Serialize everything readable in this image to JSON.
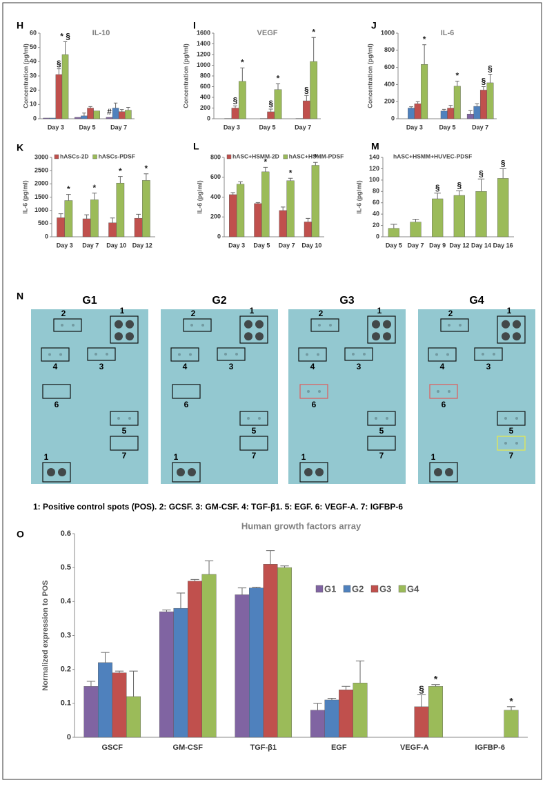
{
  "chart_data": [
    {
      "type": "bar",
      "panel": "H",
      "title": "IL-10",
      "y_label": "Concentration (pg/ml)",
      "categories": [
        "Day 3",
        "Day 5",
        "Day 7"
      ],
      "ylim": [
        0,
        60
      ],
      "yticks": [
        0,
        10,
        20,
        30,
        40,
        50,
        60
      ],
      "series": [
        {
          "color": "#8064a2",
          "values": [
            0.5,
            1,
            1
          ],
          "errors": [
            null,
            null,
            null
          ],
          "annotations": [
            null,
            null,
            "#"
          ]
        },
        {
          "color": "#4f81bd",
          "values": [
            0.5,
            2,
            7.5
          ],
          "errors": [
            null,
            2,
            3.5
          ],
          "annotations": [
            null,
            null,
            null
          ]
        },
        {
          "color": "#c0504d",
          "values": [
            31,
            7.5,
            5
          ],
          "errors": [
            4,
            1,
            1.5
          ],
          "annotations": [
            "§",
            null,
            null
          ]
        },
        {
          "color": "#9bbb59",
          "values": [
            45,
            5.5,
            6
          ],
          "errors": [
            9,
            null,
            2
          ],
          "annotations": [
            "* §",
            null,
            null
          ]
        }
      ]
    },
    {
      "type": "bar",
      "panel": "I",
      "title": "VEGF",
      "y_label": "Concentration (pg/ml)",
      "categories": [
        "Day 3",
        "Day 5",
        "Day 7"
      ],
      "ylim": [
        0,
        1600
      ],
      "yticks": [
        0,
        200,
        400,
        600,
        800,
        1000,
        1200,
        1400,
        1600
      ],
      "series": [
        {
          "color": "#8064a2",
          "values": [
            0,
            0,
            0
          ],
          "errors": [
            null,
            null,
            null
          ],
          "annotations": [
            null,
            null,
            null
          ]
        },
        {
          "color": "#4f81bd",
          "values": [
            5,
            5,
            5
          ],
          "errors": [
            null,
            null,
            null
          ],
          "annotations": [
            null,
            null,
            null
          ]
        },
        {
          "color": "#c0504d",
          "values": [
            200,
            130,
            335
          ],
          "errors": [
            40,
            50,
            100
          ],
          "annotations": [
            "§",
            "§",
            "§"
          ]
        },
        {
          "color": "#9bbb59",
          "values": [
            700,
            545,
            1070
          ],
          "errors": [
            250,
            110,
            450
          ],
          "annotations": [
            "*",
            "*",
            "*"
          ]
        }
      ]
    },
    {
      "type": "bar",
      "panel": "J",
      "title": "IL-6",
      "y_label": "Concentration (pg/ml)",
      "categories": [
        "Day 3",
        "Day 5",
        "Day 7"
      ],
      "ylim": [
        0,
        1000
      ],
      "yticks": [
        0,
        200,
        400,
        600,
        800,
        1000
      ],
      "series": [
        {
          "color": "#8064a2",
          "values": [
            0,
            0,
            55
          ],
          "errors": [
            null,
            null,
            40
          ],
          "annotations": [
            null,
            null,
            null
          ]
        },
        {
          "color": "#4f81bd",
          "values": [
            125,
            90,
            145
          ],
          "errors": [
            15,
            20,
            30
          ],
          "annotations": [
            null,
            null,
            null
          ]
        },
        {
          "color": "#c0504d",
          "values": [
            175,
            125,
            335
          ],
          "errors": [
            25,
            30,
            40
          ],
          "annotations": [
            null,
            null,
            "§"
          ]
        },
        {
          "color": "#9bbb59",
          "values": [
            635,
            380,
            420
          ],
          "errors": [
            230,
            60,
            100
          ],
          "annotations": [
            "*",
            "*",
            "§"
          ]
        }
      ]
    },
    {
      "type": "bar",
      "panel": "K",
      "y_label": "IL-6 (pg/ml)",
      "categories": [
        "Day 3",
        "Day 7",
        "Day 10",
        "Day 12"
      ],
      "ylim": [
        0,
        3000
      ],
      "yticks": [
        0,
        500,
        1000,
        1500,
        2000,
        2500,
        3000
      ],
      "legend": "top-left",
      "series": [
        {
          "name": "hASCs-2D",
          "color": "#c0504d",
          "values": [
            720,
            680,
            530,
            700
          ],
          "errors": [
            150,
            150,
            180,
            150
          ],
          "annotations": [
            null,
            null,
            null,
            null
          ]
        },
        {
          "name": "hASCs-PDSF",
          "color": "#9bbb59",
          "values": [
            1370,
            1400,
            2030,
            2130
          ],
          "errors": [
            230,
            250,
            250,
            250
          ],
          "annotations": [
            "*",
            "*",
            "*",
            "*"
          ]
        }
      ]
    },
    {
      "type": "bar",
      "panel": "L",
      "y_label": "IL-6 (pg/ml)",
      "categories": [
        "Day 3",
        "Day 5",
        "Day 7",
        "Day 10"
      ],
      "ylim": [
        0,
        800
      ],
      "yticks": [
        0,
        200,
        400,
        600,
        800
      ],
      "legend": "top-left",
      "series": [
        {
          "name": "hASC+HSMM-2D",
          "color": "#c0504d",
          "values": [
            425,
            335,
            265,
            150
          ],
          "errors": [
            20,
            10,
            35,
            35
          ],
          "annotations": [
            null,
            null,
            null,
            null
          ]
        },
        {
          "name": "hASC+HSMM-PDSF",
          "color": "#9bbb59",
          "values": [
            530,
            655,
            565,
            720
          ],
          "errors": [
            25,
            45,
            25,
            30
          ],
          "annotations": [
            null,
            "*",
            "*",
            "*"
          ]
        }
      ]
    },
    {
      "type": "bar",
      "panel": "M",
      "y_label": "IL-6 (pg/ml)",
      "categories": [
        "Day 5",
        "Day 7",
        "Day 9",
        "Day 12",
        "Day 14",
        "Day 16"
      ],
      "ylim": [
        0,
        140
      ],
      "yticks": [
        0,
        20,
        40,
        60,
        80,
        100,
        120,
        140
      ],
      "legend": "top",
      "series": [
        {
          "name": "hASC+HSMM+HUVEC-PDSF",
          "color": "#9bbb59",
          "values": [
            15,
            26,
            67,
            73,
            80,
            103
          ],
          "errors": [
            7,
            5,
            10,
            8,
            22,
            17
          ],
          "annotations": [
            null,
            null,
            "§",
            "§",
            "§",
            "§"
          ]
        }
      ]
    },
    {
      "type": "bar",
      "panel": "O",
      "title": "Human growth factors array",
      "y_label": "Normalized expression to POS",
      "categories": [
        "GSCF",
        "GM-CSF",
        "TGF-β1",
        "EGF",
        "VEGF-A",
        "IGFBP-6"
      ],
      "ylim": [
        0,
        0.6
      ],
      "yticks": [
        0,
        0.1,
        0.2,
        0.3,
        0.4,
        0.5,
        0.6
      ],
      "legend": "right",
      "series": [
        {
          "name": "G1",
          "color": "#8064a2",
          "values": [
            0.15,
            0.37,
            0.42,
            0.08,
            null,
            null
          ],
          "errors": [
            0.015,
            0.005,
            0.02,
            0.02,
            null,
            null
          ],
          "annotations": [
            null,
            null,
            null,
            null,
            null,
            null
          ]
        },
        {
          "name": "G2",
          "color": "#4f81bd",
          "values": [
            0.22,
            0.38,
            0.44,
            0.11,
            null,
            null
          ],
          "errors": [
            0.03,
            0.045,
            0.002,
            0.005,
            null,
            null
          ],
          "annotations": [
            null,
            null,
            null,
            null,
            null,
            null
          ]
        },
        {
          "name": "G3",
          "color": "#c0504d",
          "values": [
            0.19,
            0.46,
            0.51,
            0.14,
            0.09,
            null
          ],
          "errors": [
            0.005,
            0.005,
            0.04,
            0.01,
            0.035,
            null
          ],
          "annotations": [
            null,
            null,
            null,
            null,
            "§",
            null
          ]
        },
        {
          "name": "G4",
          "color": "#9bbb59",
          "values": [
            0.12,
            0.48,
            0.5,
            0.16,
            0.15,
            0.08
          ],
          "errors": [
            0.075,
            0.04,
            0.005,
            0.065,
            0.005,
            0.01
          ],
          "annotations": [
            null,
            null,
            null,
            null,
            "*",
            "*"
          ]
        }
      ]
    }
  ],
  "blot_figure": {
    "panel": "N",
    "blots": [
      {
        "title": "G1",
        "labels": [
          "2",
          "1",
          "4",
          "3",
          "6",
          "5",
          "7",
          "1"
        ],
        "highlight_colors": [
          null,
          null,
          null,
          null,
          null,
          null,
          null,
          null
        ]
      },
      {
        "title": "G2",
        "labels": [
          "2",
          "1",
          "4",
          "3",
          "6",
          "5",
          "7",
          "1"
        ],
        "highlight_colors": [
          null,
          null,
          null,
          null,
          null,
          null,
          null,
          null
        ]
      },
      {
        "title": "G3",
        "labels": [
          "2",
          "1",
          "4",
          "3",
          "6",
          "5",
          "7",
          "1"
        ],
        "highlight_colors": [
          null,
          null,
          null,
          null,
          "#e05a5a",
          null,
          null,
          null
        ]
      },
      {
        "title": "G4",
        "labels": [
          "2",
          "1",
          "4",
          "3",
          "6",
          "5",
          "7",
          "1"
        ],
        "highlight_colors": [
          null,
          null,
          null,
          null,
          "#e05a5a",
          null,
          "#e8e84a",
          null
        ]
      }
    ],
    "caption": "1: Positive control spots (POS). 2: GCSF. 3: GM-CSF. 4: TGF-β1. 5: EGF. 6: VEGF-A. 7: IGFBP-6"
  }
}
